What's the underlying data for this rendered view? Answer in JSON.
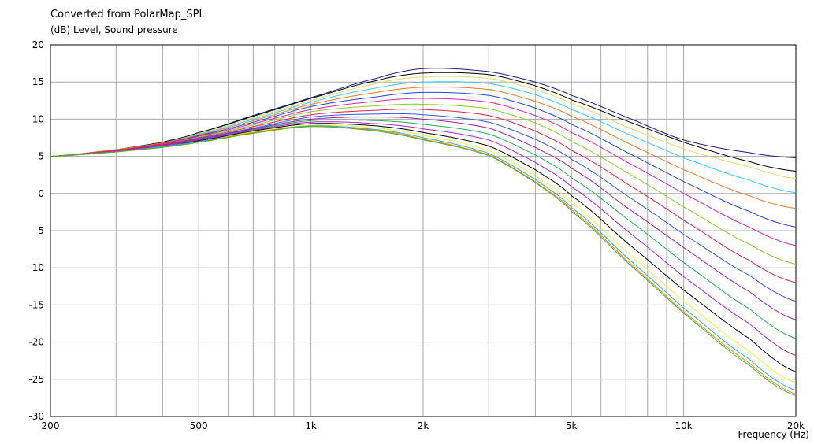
{
  "chart_data": {
    "type": "line",
    "title": "Converted from PolarMap_SPL",
    "ylabel": "(dB)  Level, Sound pressure",
    "xlabel": "Frequency  (Hz)",
    "x_scale": "log",
    "xlim": [
      200,
      20000
    ],
    "ylim": [
      -30,
      20
    ],
    "grid": true,
    "yticks": [
      20,
      15,
      10,
      5,
      0,
      -5,
      -10,
      -15,
      -20,
      -25,
      -30
    ],
    "xticks": [
      {
        "value": 200,
        "label": "200"
      },
      {
        "value": 500,
        "label": "500"
      },
      {
        "value": 1000,
        "label": "1k"
      },
      {
        "value": 2000,
        "label": "2k"
      },
      {
        "value": 5000,
        "label": "5k"
      },
      {
        "value": 10000,
        "label": "10k"
      },
      {
        "value": 20000,
        "label": "20k"
      }
    ],
    "x": [
      200,
      300,
      400,
      500,
      700,
      1000,
      1500,
      2000,
      3000,
      4000,
      5000,
      7000,
      10000,
      15000,
      20000
    ],
    "series": [
      {
        "color": "#1a1a80",
        "values": [
          5.0,
          5.9,
          6.9,
          8.2,
          10.5,
          12.9,
          15.5,
          16.8,
          16.4,
          15.0,
          13.2,
          10.3,
          7.2,
          5.5,
          4.8
        ]
      },
      {
        "color": "#000000",
        "values": [
          5.0,
          5.9,
          6.9,
          8.2,
          10.4,
          12.8,
          15.2,
          16.2,
          16.0,
          14.5,
          12.6,
          9.8,
          6.9,
          4.3,
          3.0
        ]
      },
      {
        "color": "#e0d86a",
        "values": [
          5.0,
          5.9,
          6.8,
          8.1,
          10.2,
          12.5,
          14.8,
          15.7,
          15.5,
          14.0,
          12.1,
          9.0,
          6.0,
          3.6,
          2.0
        ]
      },
      {
        "color": "#33ccee",
        "values": [
          5.0,
          5.9,
          6.8,
          8.0,
          10.0,
          12.3,
          14.2,
          15.0,
          14.8,
          13.3,
          11.3,
          8.1,
          4.8,
          1.8,
          0.1
        ]
      },
      {
        "color": "#ee7722",
        "values": [
          5.0,
          5.9,
          6.8,
          7.9,
          9.8,
          12.0,
          13.6,
          14.3,
          14.0,
          12.4,
          10.4,
          6.9,
          3.2,
          -0.3,
          -2.0
        ]
      },
      {
        "color": "#2244dd",
        "values": [
          5.0,
          5.8,
          6.7,
          7.8,
          9.6,
          11.7,
          13.0,
          13.6,
          13.2,
          11.5,
          9.3,
          5.6,
          1.6,
          -2.4,
          -4.5
        ]
      },
      {
        "color": "#dd22aa",
        "values": [
          5.0,
          5.8,
          6.7,
          7.7,
          9.4,
          11.3,
          12.4,
          12.8,
          12.3,
          10.5,
          8.2,
          4.3,
          0.0,
          -4.5,
          -7.0
        ]
      },
      {
        "color": "#88cc22",
        "values": [
          5.0,
          5.8,
          6.6,
          7.6,
          9.2,
          11.0,
          11.8,
          12.0,
          11.4,
          9.5,
          7.0,
          2.9,
          -1.8,
          -6.8,
          -9.5
        ]
      },
      {
        "color": "#dd2244",
        "values": [
          5.0,
          5.8,
          6.6,
          7.5,
          9.0,
          10.6,
          11.2,
          11.3,
          10.5,
          8.4,
          5.8,
          1.4,
          -3.6,
          -9.0,
          -12.0
        ]
      },
      {
        "color": "#3355ee",
        "values": [
          5.0,
          5.7,
          6.5,
          7.4,
          8.8,
          10.3,
          10.7,
          10.6,
          9.6,
          7.3,
          4.6,
          -0.2,
          -5.5,
          -11.0,
          -14.5
        ]
      },
      {
        "color": "#992299",
        "values": [
          5.0,
          5.7,
          6.5,
          7.3,
          8.7,
          10.0,
          10.3,
          10.0,
          8.8,
          6.2,
          3.4,
          -1.8,
          -7.3,
          -13.2,
          -17.0
        ]
      },
      {
        "color": "#22aa55",
        "values": [
          5.0,
          5.7,
          6.4,
          7.2,
          8.6,
          9.8,
          9.8,
          9.3,
          8.0,
          5.2,
          2.1,
          -3.3,
          -9.3,
          -15.5,
          -19.5
        ]
      },
      {
        "color": "#aa22cc",
        "values": [
          5.0,
          5.7,
          6.4,
          7.2,
          8.5,
          9.6,
          9.4,
          8.7,
          7.2,
          4.2,
          0.9,
          -4.9,
          -11.2,
          -17.5,
          -21.8
        ]
      },
      {
        "color": "#000000",
        "values": [
          5.0,
          5.6,
          6.3,
          7.1,
          8.4,
          9.4,
          9.1,
          8.2,
          6.4,
          3.2,
          -0.3,
          -6.5,
          -13.0,
          -19.5,
          -24.0
        ]
      },
      {
        "color": "#ffee33",
        "values": [
          5.0,
          5.6,
          6.3,
          7.0,
          8.3,
          9.2,
          8.8,
          7.8,
          5.8,
          2.4,
          -1.3,
          -7.8,
          -14.5,
          -21.2,
          -25.5
        ]
      },
      {
        "color": "#22aaee",
        "values": [
          5.0,
          5.6,
          6.3,
          7.0,
          8.2,
          9.1,
          8.6,
          7.5,
          5.4,
          1.9,
          -1.9,
          -8.5,
          -15.4,
          -22.3,
          -26.5
        ]
      },
      {
        "color": "#ee8811",
        "values": [
          5.0,
          5.6,
          6.2,
          6.9,
          8.2,
          9.0,
          8.5,
          7.3,
          5.2,
          1.6,
          -2.2,
          -8.9,
          -15.9,
          -22.8,
          -27.0
        ]
      },
      {
        "color": "#55aa22",
        "values": [
          5.0,
          5.6,
          6.2,
          6.9,
          8.1,
          9.0,
          8.4,
          7.2,
          5.1,
          1.5,
          -2.4,
          -9.1,
          -16.1,
          -23.1,
          -27.2
        ]
      }
    ]
  }
}
